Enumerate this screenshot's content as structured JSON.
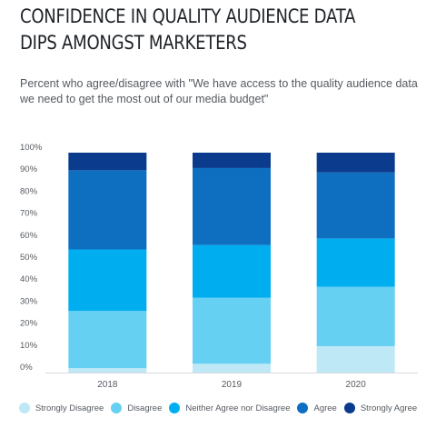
{
  "title": "CONFIDENCE IN QUALITY AUDIENCE DATA DIPS AMONGST MARKETERS",
  "subtitle": "Percent who agree/disagree with \"We have access to the quality audience data we need to get the most out of our media budget\"",
  "chart_data": {
    "type": "bar",
    "stacked": true,
    "categories": [
      "2018",
      "2019",
      "2020"
    ],
    "series": [
      {
        "name": "Strongly Disagree",
        "color": "#bfe8f7",
        "values": [
          2,
          4,
          12
        ]
      },
      {
        "name": "Disagree",
        "color": "#66d0f2",
        "values": [
          26,
          30,
          27
        ]
      },
      {
        "name": "Neither Agree nor Disagree",
        "color": "#00aeef",
        "values": [
          28,
          24,
          22
        ]
      },
      {
        "name": "Agree",
        "color": "#0e6fc0",
        "values": [
          36,
          35,
          30
        ]
      },
      {
        "name": "Strongly Agree",
        "color": "#0a3b8c",
        "values": [
          8,
          7,
          9
        ]
      }
    ],
    "y_ticks": [
      "0%",
      "10%",
      "20%",
      "30%",
      "40%",
      "50%",
      "60%",
      "70%",
      "80%",
      "90%",
      "100%"
    ],
    "ylim": [
      0,
      100
    ],
    "grid": false,
    "legend_position": "bottom"
  }
}
